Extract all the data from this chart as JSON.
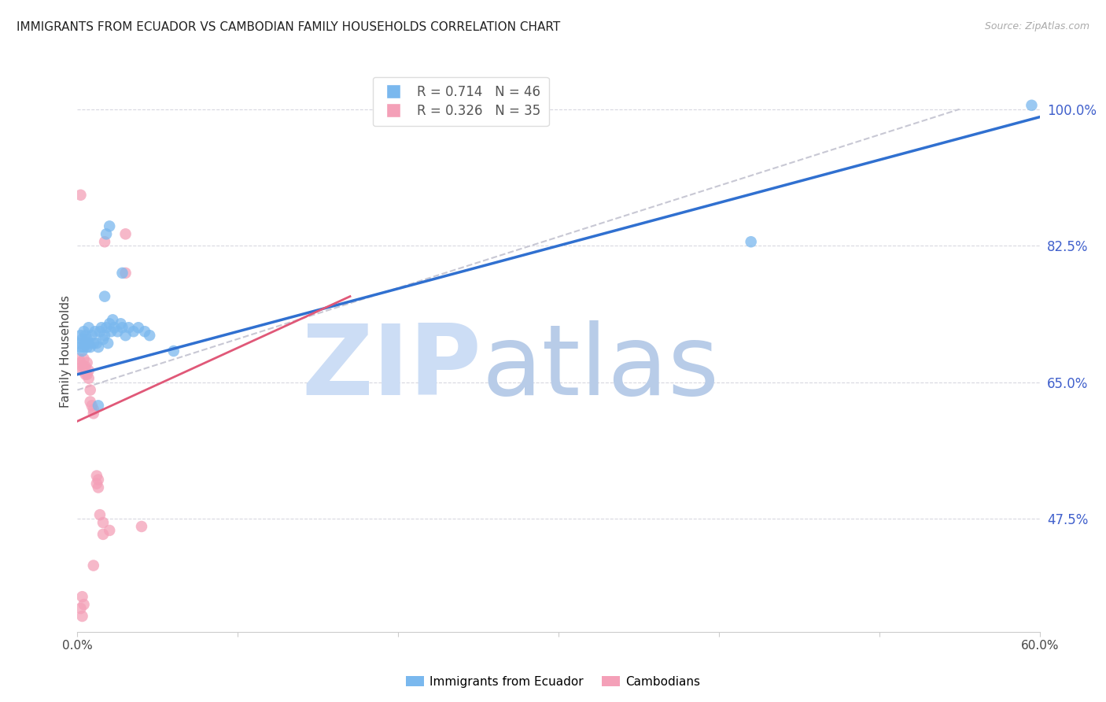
{
  "title": "IMMIGRANTS FROM ECUADOR VS CAMBODIAN FAMILY HOUSEHOLDS CORRELATION CHART",
  "source": "Source: ZipAtlas.com",
  "ylabel": "Family Households",
  "xlim": [
    0.0,
    0.6
  ],
  "ylim": [
    0.33,
    1.05
  ],
  "xticks": [
    0.0,
    0.1,
    0.2,
    0.3,
    0.4,
    0.5,
    0.6
  ],
  "xticklabels": [
    "0.0%",
    "",
    "",
    "",
    "",
    "",
    "60.0%"
  ],
  "yticks_right": [
    0.475,
    0.65,
    0.825,
    1.0
  ],
  "yticklabels_right": [
    "47.5%",
    "65.0%",
    "82.5%",
    "100.0%"
  ],
  "ecuador_scatter": [
    [
      0.001,
      0.7
    ],
    [
      0.002,
      0.695
    ],
    [
      0.002,
      0.71
    ],
    [
      0.003,
      0.69
    ],
    [
      0.003,
      0.705
    ],
    [
      0.004,
      0.695
    ],
    [
      0.004,
      0.715
    ],
    [
      0.005,
      0.7
    ],
    [
      0.005,
      0.71
    ],
    [
      0.006,
      0.705
    ],
    [
      0.006,
      0.695
    ],
    [
      0.007,
      0.7
    ],
    [
      0.007,
      0.72
    ],
    [
      0.008,
      0.695
    ],
    [
      0.009,
      0.71
    ],
    [
      0.01,
      0.7
    ],
    [
      0.011,
      0.715
    ],
    [
      0.012,
      0.7
    ],
    [
      0.013,
      0.695
    ],
    [
      0.014,
      0.715
    ],
    [
      0.015,
      0.72
    ],
    [
      0.016,
      0.705
    ],
    [
      0.017,
      0.71
    ],
    [
      0.018,
      0.72
    ],
    [
      0.019,
      0.7
    ],
    [
      0.02,
      0.725
    ],
    [
      0.021,
      0.715
    ],
    [
      0.022,
      0.73
    ],
    [
      0.023,
      0.72
    ],
    [
      0.025,
      0.715
    ],
    [
      0.027,
      0.725
    ],
    [
      0.028,
      0.72
    ],
    [
      0.03,
      0.71
    ],
    [
      0.032,
      0.72
    ],
    [
      0.035,
      0.715
    ],
    [
      0.038,
      0.72
    ],
    [
      0.042,
      0.715
    ],
    [
      0.045,
      0.71
    ],
    [
      0.017,
      0.76
    ],
    [
      0.018,
      0.84
    ],
    [
      0.028,
      0.79
    ],
    [
      0.02,
      0.85
    ],
    [
      0.013,
      0.62
    ],
    [
      0.42,
      0.83
    ],
    [
      0.06,
      0.69
    ],
    [
      0.595,
      1.005
    ]
  ],
  "cambodian_scatter": [
    [
      0.001,
      0.68
    ],
    [
      0.002,
      0.89
    ],
    [
      0.002,
      0.675
    ],
    [
      0.003,
      0.67
    ],
    [
      0.003,
      0.665
    ],
    [
      0.004,
      0.68
    ],
    [
      0.004,
      0.67
    ],
    [
      0.005,
      0.66
    ],
    [
      0.005,
      0.67
    ],
    [
      0.006,
      0.675
    ],
    [
      0.006,
      0.66
    ],
    [
      0.007,
      0.665
    ],
    [
      0.007,
      0.655
    ],
    [
      0.008,
      0.64
    ],
    [
      0.008,
      0.625
    ],
    [
      0.009,
      0.62
    ],
    [
      0.01,
      0.615
    ],
    [
      0.01,
      0.61
    ],
    [
      0.012,
      0.53
    ],
    [
      0.012,
      0.52
    ],
    [
      0.013,
      0.525
    ],
    [
      0.013,
      0.515
    ],
    [
      0.014,
      0.48
    ],
    [
      0.016,
      0.47
    ],
    [
      0.016,
      0.455
    ],
    [
      0.01,
      0.415
    ],
    [
      0.003,
      0.375
    ],
    [
      0.004,
      0.365
    ],
    [
      0.02,
      0.46
    ],
    [
      0.04,
      0.465
    ],
    [
      0.017,
      0.83
    ],
    [
      0.03,
      0.84
    ],
    [
      0.03,
      0.79
    ],
    [
      0.002,
      0.36
    ],
    [
      0.003,
      0.35
    ]
  ],
  "ecuador_line_x": [
    0.0,
    0.6
  ],
  "ecuador_line_y": [
    0.66,
    0.99
  ],
  "cambodian_line_x": [
    0.0,
    0.17
  ],
  "cambodian_line_y": [
    0.6,
    0.76
  ],
  "diagonal_line_x": [
    0.0,
    0.55
  ],
  "diagonal_line_y": [
    0.64,
    1.0
  ],
  "ecuador_color": "#7ab8ee",
  "cambodian_color": "#f4a0b8",
  "ecuador_line_color": "#3070d0",
  "cambodian_line_color": "#e05878",
  "diagonal_color": "#c8c8d4",
  "watermark_zip": "ZIP",
  "watermark_atlas": "atlas",
  "watermark_color": "#ccddf5",
  "background_color": "#ffffff",
  "title_fontsize": 11,
  "right_axis_color": "#4060cc",
  "grid_color": "#d8d8e0"
}
